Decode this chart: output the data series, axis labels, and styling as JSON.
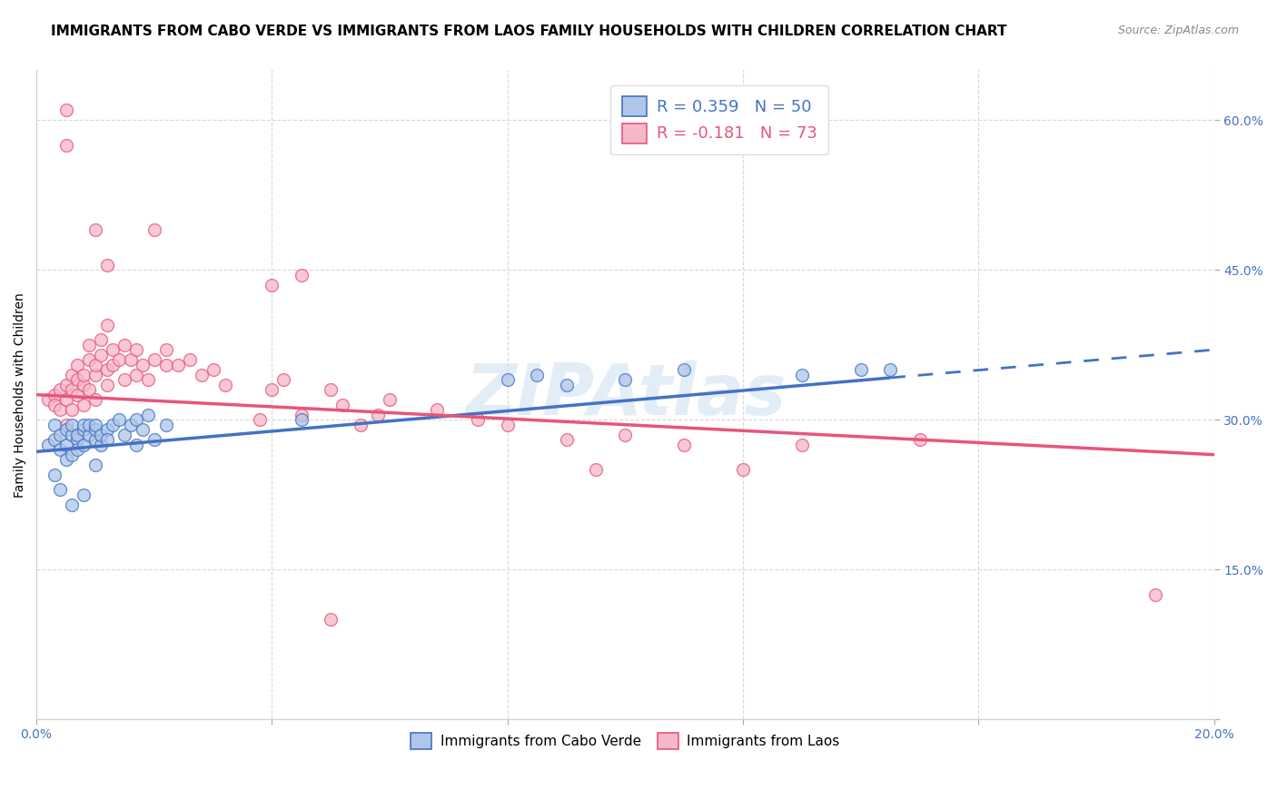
{
  "title": "IMMIGRANTS FROM CABO VERDE VS IMMIGRANTS FROM LAOS FAMILY HOUSEHOLDS WITH CHILDREN CORRELATION CHART",
  "source": "Source: ZipAtlas.com",
  "ylabel": "Family Households with Children",
  "xlim": [
    0.0,
    0.2
  ],
  "ylim": [
    0.0,
    0.65
  ],
  "xticks": [
    0.0,
    0.04,
    0.08,
    0.12,
    0.16,
    0.2
  ],
  "yticks": [
    0.0,
    0.15,
    0.3,
    0.45,
    0.6
  ],
  "cabo_verde_color": "#aec6e8",
  "laos_color": "#f5b8c8",
  "cabo_verde_line_color": "#4472c4",
  "laos_line_color": "#e8557a",
  "cabo_verde_R": 0.359,
  "cabo_verde_N": 50,
  "laos_R": -0.181,
  "laos_N": 73,
  "cabo_verde_line": [
    0.0,
    0.268,
    0.145,
    0.342
  ],
  "cabo_verde_line_solid_end": 0.145,
  "cabo_verde_line_dash_end": 0.2,
  "laos_line": [
    0.0,
    0.325,
    0.2,
    0.265
  ],
  "cabo_verde_scatter": [
    [
      0.002,
      0.275
    ],
    [
      0.003,
      0.295
    ],
    [
      0.003,
      0.28
    ],
    [
      0.004,
      0.27
    ],
    [
      0.004,
      0.285
    ],
    [
      0.005,
      0.29
    ],
    [
      0.005,
      0.275
    ],
    [
      0.005,
      0.26
    ],
    [
      0.006,
      0.285
    ],
    [
      0.006,
      0.295
    ],
    [
      0.006,
      0.265
    ],
    [
      0.007,
      0.28
    ],
    [
      0.007,
      0.27
    ],
    [
      0.007,
      0.285
    ],
    [
      0.008,
      0.29
    ],
    [
      0.008,
      0.275
    ],
    [
      0.008,
      0.295
    ],
    [
      0.009,
      0.285
    ],
    [
      0.009,
      0.295
    ],
    [
      0.01,
      0.28
    ],
    [
      0.01,
      0.29
    ],
    [
      0.01,
      0.295
    ],
    [
      0.011,
      0.275
    ],
    [
      0.011,
      0.285
    ],
    [
      0.012,
      0.29
    ],
    [
      0.012,
      0.28
    ],
    [
      0.013,
      0.295
    ],
    [
      0.014,
      0.3
    ],
    [
      0.015,
      0.285
    ],
    [
      0.016,
      0.295
    ],
    [
      0.017,
      0.275
    ],
    [
      0.017,
      0.3
    ],
    [
      0.018,
      0.29
    ],
    [
      0.019,
      0.305
    ],
    [
      0.02,
      0.28
    ],
    [
      0.022,
      0.295
    ],
    [
      0.003,
      0.245
    ],
    [
      0.004,
      0.23
    ],
    [
      0.006,
      0.215
    ],
    [
      0.008,
      0.225
    ],
    [
      0.01,
      0.255
    ],
    [
      0.045,
      0.3
    ],
    [
      0.08,
      0.34
    ],
    [
      0.085,
      0.345
    ],
    [
      0.09,
      0.335
    ],
    [
      0.1,
      0.34
    ],
    [
      0.11,
      0.35
    ],
    [
      0.13,
      0.345
    ],
    [
      0.14,
      0.35
    ],
    [
      0.145,
      0.35
    ]
  ],
  "laos_scatter": [
    [
      0.002,
      0.32
    ],
    [
      0.003,
      0.325
    ],
    [
      0.003,
      0.315
    ],
    [
      0.004,
      0.33
    ],
    [
      0.004,
      0.31
    ],
    [
      0.005,
      0.335
    ],
    [
      0.005,
      0.32
    ],
    [
      0.005,
      0.295
    ],
    [
      0.006,
      0.33
    ],
    [
      0.006,
      0.345
    ],
    [
      0.006,
      0.31
    ],
    [
      0.007,
      0.34
    ],
    [
      0.007,
      0.355
    ],
    [
      0.007,
      0.325
    ],
    [
      0.008,
      0.335
    ],
    [
      0.008,
      0.315
    ],
    [
      0.008,
      0.345
    ],
    [
      0.009,
      0.36
    ],
    [
      0.009,
      0.33
    ],
    [
      0.009,
      0.375
    ],
    [
      0.01,
      0.345
    ],
    [
      0.01,
      0.32
    ],
    [
      0.01,
      0.355
    ],
    [
      0.011,
      0.38
    ],
    [
      0.011,
      0.365
    ],
    [
      0.012,
      0.35
    ],
    [
      0.012,
      0.335
    ],
    [
      0.012,
      0.395
    ],
    [
      0.013,
      0.37
    ],
    [
      0.013,
      0.355
    ],
    [
      0.014,
      0.36
    ],
    [
      0.015,
      0.375
    ],
    [
      0.015,
      0.34
    ],
    [
      0.016,
      0.36
    ],
    [
      0.017,
      0.37
    ],
    [
      0.017,
      0.345
    ],
    [
      0.018,
      0.355
    ],
    [
      0.019,
      0.34
    ],
    [
      0.02,
      0.36
    ],
    [
      0.022,
      0.355
    ],
    [
      0.022,
      0.37
    ],
    [
      0.024,
      0.355
    ],
    [
      0.026,
      0.36
    ],
    [
      0.028,
      0.345
    ],
    [
      0.03,
      0.35
    ],
    [
      0.032,
      0.335
    ],
    [
      0.038,
      0.3
    ],
    [
      0.04,
      0.33
    ],
    [
      0.042,
      0.34
    ],
    [
      0.045,
      0.305
    ],
    [
      0.05,
      0.33
    ],
    [
      0.052,
      0.315
    ],
    [
      0.055,
      0.295
    ],
    [
      0.058,
      0.305
    ],
    [
      0.06,
      0.32
    ],
    [
      0.068,
      0.31
    ],
    [
      0.075,
      0.3
    ],
    [
      0.08,
      0.295
    ],
    [
      0.09,
      0.28
    ],
    [
      0.095,
      0.25
    ],
    [
      0.1,
      0.285
    ],
    [
      0.11,
      0.275
    ],
    [
      0.12,
      0.25
    ],
    [
      0.13,
      0.275
    ],
    [
      0.15,
      0.28
    ],
    [
      0.005,
      0.575
    ],
    [
      0.01,
      0.49
    ],
    [
      0.02,
      0.49
    ],
    [
      0.012,
      0.455
    ],
    [
      0.005,
      0.61
    ],
    [
      0.04,
      0.435
    ],
    [
      0.045,
      0.445
    ],
    [
      0.05,
      0.1
    ],
    [
      0.19,
      0.125
    ]
  ],
  "watermark": "ZIPAtlas",
  "background_color": "#ffffff",
  "grid_color": "#d8d8d8",
  "title_fontsize": 11,
  "label_fontsize": 10,
  "tick_fontsize": 10,
  "legend_fontsize": 13
}
